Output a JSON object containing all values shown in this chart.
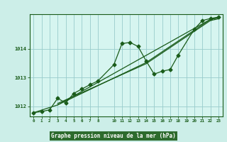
{
  "xlabel": "Graphe pression niveau de la mer (hPa)",
  "background_color": "#cceee8",
  "plot_bg_color": "#d6f5f0",
  "grid_color": "#99cccc",
  "line_color": "#1a5c1a",
  "label_bg_color": "#2d6b2d",
  "label_text_color": "#ffffff",
  "xlim": [
    -0.5,
    23.5
  ],
  "ylim": [
    1011.65,
    1015.2
  ],
  "yticks": [
    1012,
    1013,
    1014
  ],
  "xticks": [
    0,
    1,
    2,
    3,
    4,
    5,
    6,
    7,
    8,
    10,
    11,
    12,
    13,
    14,
    15,
    16,
    17,
    18,
    19,
    20,
    21,
    22,
    23
  ],
  "series1_x": [
    0,
    1,
    2,
    3,
    4,
    5,
    6,
    7,
    8,
    10,
    11,
    12,
    13,
    14,
    15,
    16,
    17,
    18,
    20,
    21,
    22,
    23
  ],
  "series1_y": [
    1011.78,
    1011.82,
    1011.88,
    1012.28,
    1012.12,
    1012.45,
    1012.6,
    1012.75,
    1012.88,
    1013.45,
    1014.18,
    1014.22,
    1014.08,
    1013.58,
    1013.12,
    1013.22,
    1013.28,
    1013.78,
    1014.68,
    1014.98,
    1015.05,
    1015.1
  ],
  "series2_x": [
    0,
    3,
    22,
    23
  ],
  "series2_y": [
    1011.78,
    1012.05,
    1015.02,
    1015.08
  ],
  "series3_x": [
    3,
    14,
    22,
    23
  ],
  "series3_y": [
    1012.05,
    1013.52,
    1015.02,
    1015.08
  ],
  "series4_x": [
    3,
    14,
    22,
    23
  ],
  "series4_y": [
    1012.1,
    1013.48,
    1014.98,
    1015.04
  ]
}
